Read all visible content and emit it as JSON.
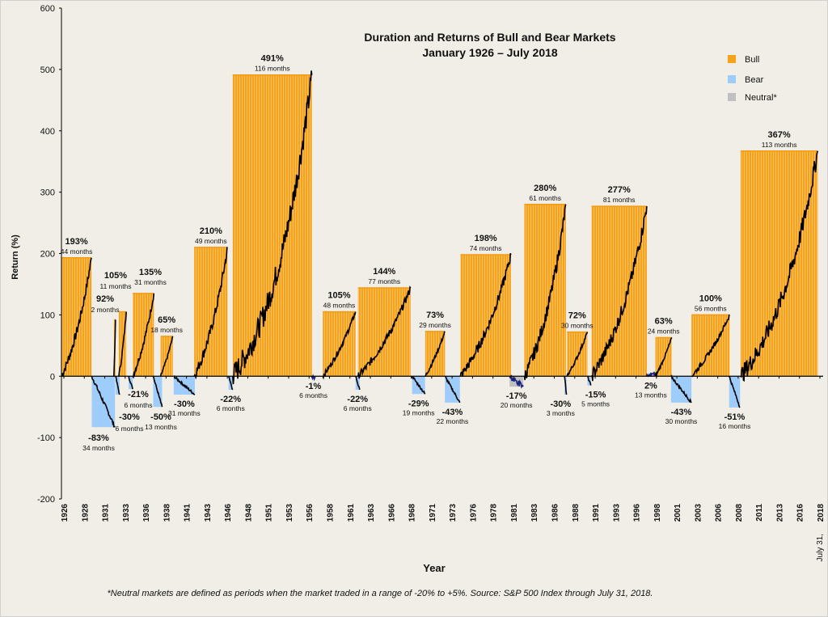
{
  "chart_data": {
    "type": "bar",
    "title": "Duration and Returns of Bull and Bear Markets",
    "subtitle": "January 1926 – July 2018",
    "xlabel": "Year",
    "ylabel": "Return (%)",
    "ylim": [
      -200,
      600
    ],
    "yticks": [
      600,
      500,
      400,
      300,
      200,
      100,
      0,
      -100,
      -200
    ],
    "xlim": [
      1926.0,
      2018.58
    ],
    "xticks": [
      "1926",
      "1928",
      "1931",
      "1933",
      "1936",
      "1938",
      "1941",
      "1943",
      "1946",
      "1948",
      "1951",
      "1953",
      "1956",
      "1958",
      "1961",
      "1963",
      "1966",
      "1968",
      "1971",
      "1973",
      "1976",
      "1978",
      "1981",
      "1983",
      "1986",
      "1988",
      "1991",
      "1993",
      "1996",
      "1998",
      "2001",
      "2003",
      "2006",
      "2008",
      "2011",
      "2013",
      "2016",
      "2018"
    ],
    "end_label": "July 31,",
    "legend": {
      "placement": "top-right",
      "items": [
        {
          "key": "bull",
          "label": "Bull",
          "color": "#f7a21b"
        },
        {
          "key": "bear",
          "label": "Bear",
          "color": "#9fcdfb"
        },
        {
          "key": "neutral",
          "label": "Neutral*",
          "color": "#c0c0c0"
        }
      ]
    },
    "markets": [
      {
        "type": "bull",
        "start": 1926.0,
        "months": 44,
        "return": 193,
        "label": "193%",
        "duration": "44 months"
      },
      {
        "type": "bear",
        "start": 1929.7,
        "months": 34,
        "return": -83,
        "label": "-83%",
        "duration": "34 months"
      },
      {
        "type": "bull",
        "start": 1932.4,
        "months": 2,
        "return": 92,
        "label": "92%",
        "duration": "2 months"
      },
      {
        "type": "bear",
        "start": 1932.6,
        "months": 6,
        "return": -30,
        "label": "-30%",
        "duration": "6 months"
      },
      {
        "type": "bull",
        "start": 1933.0,
        "months": 11,
        "return": 105,
        "label": "105%",
        "duration": "11 months"
      },
      {
        "type": "bear",
        "start": 1934.2,
        "months": 6,
        "return": -21,
        "label": "-21%",
        "duration": "6 months"
      },
      {
        "type": "bull",
        "start": 1934.7,
        "months": 31,
        "return": 135,
        "label": "135%",
        "duration": "31 months"
      },
      {
        "type": "bear",
        "start": 1937.2,
        "months": 13,
        "return": -50,
        "label": "-50%",
        "duration": "13 months"
      },
      {
        "type": "bull",
        "start": 1938.1,
        "months": 18,
        "return": 65,
        "label": "65%",
        "duration": "18 months"
      },
      {
        "type": "bear",
        "start": 1939.7,
        "months": 31,
        "return": -30,
        "label": "-30%",
        "duration": "31 months"
      },
      {
        "type": "bull",
        "start": 1942.2,
        "months": 49,
        "return": 210,
        "label": "210%",
        "duration": "49 months"
      },
      {
        "type": "bear",
        "start": 1946.4,
        "months": 6,
        "return": -22,
        "label": "-22%",
        "duration": "6 months"
      },
      {
        "type": "bull",
        "start": 1946.9,
        "months": 116,
        "return": 491,
        "label": "491%",
        "duration": "116 months"
      },
      {
        "type": "neutral",
        "start": 1956.5,
        "months": 6,
        "return": -1,
        "label": "-1%",
        "duration": "6 months"
      },
      {
        "type": "bull",
        "start": 1957.9,
        "months": 48,
        "return": 105,
        "label": "105%",
        "duration": "48 months"
      },
      {
        "type": "bear",
        "start": 1961.9,
        "months": 6,
        "return": -22,
        "label": "-22%",
        "duration": "6 months"
      },
      {
        "type": "bull",
        "start": 1962.2,
        "months": 77,
        "return": 144,
        "label": "144%",
        "duration": "77 months"
      },
      {
        "type": "bear",
        "start": 1968.8,
        "months": 19,
        "return": -29,
        "label": "-29%",
        "duration": "19 months"
      },
      {
        "type": "bull",
        "start": 1970.4,
        "months": 29,
        "return": 73,
        "label": "73%",
        "duration": "29 months"
      },
      {
        "type": "bear",
        "start": 1972.8,
        "months": 22,
        "return": -43,
        "label": "-43%",
        "duration": "22 months"
      },
      {
        "type": "bull",
        "start": 1974.7,
        "months": 74,
        "return": 198,
        "label": "198%",
        "duration": "74 months"
      },
      {
        "type": "neutral",
        "start": 1980.7,
        "months": 20,
        "return": -17,
        "label": "-17%",
        "duration": "20 months"
      },
      {
        "type": "bull",
        "start": 1982.5,
        "months": 61,
        "return": 280,
        "label": "280%",
        "duration": "61 months"
      },
      {
        "type": "bear",
        "start": 1987.4,
        "months": 3,
        "return": -30,
        "label": "-30%",
        "duration": "3 months"
      },
      {
        "type": "bull",
        "start": 1987.7,
        "months": 30,
        "return": 72,
        "label": "72%",
        "duration": "30 months"
      },
      {
        "type": "bear",
        "start": 1990.2,
        "months": 5,
        "return": -15,
        "label": "-15%",
        "duration": "5 months"
      },
      {
        "type": "bull",
        "start": 1990.7,
        "months": 81,
        "return": 277,
        "label": "277%",
        "duration": "81 months"
      },
      {
        "type": "neutral",
        "start": 1997.4,
        "months": 13,
        "return": 2,
        "label": "2%",
        "duration": "13 months"
      },
      {
        "type": "bull",
        "start": 1998.5,
        "months": 24,
        "return": 63,
        "label": "63%",
        "duration": "24 months"
      },
      {
        "type": "bear",
        "start": 2000.4,
        "months": 30,
        "return": -43,
        "label": "-43%",
        "duration": "30 months"
      },
      {
        "type": "bull",
        "start": 2002.9,
        "months": 56,
        "return": 100,
        "label": "100%",
        "duration": "56 months"
      },
      {
        "type": "bear",
        "start": 2007.5,
        "months": 16,
        "return": -51,
        "label": "-51%",
        "duration": "16 months"
      },
      {
        "type": "bull",
        "start": 2008.9,
        "months": 113,
        "return": 367,
        "label": "367%",
        "duration": "113 months"
      }
    ],
    "footnote": "*Neutral markets are defined as periods when the market traded in a range of -20% to +5%.  Source: S&P 500 Index through July 31, 2018."
  }
}
